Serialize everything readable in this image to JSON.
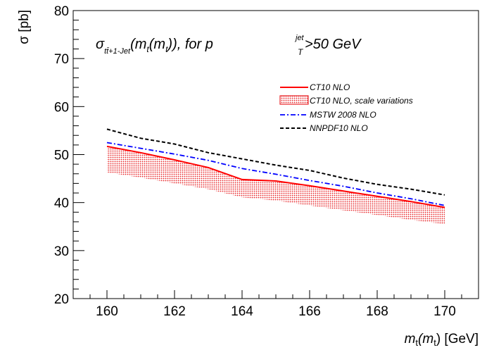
{
  "chart_data": {
    "type": "line",
    "title": "",
    "annotation": {
      "sigma": "σ",
      "subscript": "tt̄+1-Jet",
      "arg_open": "(m",
      "arg_sub1": "t",
      "arg_mid": "(m",
      "arg_sub2": "t",
      "arg_close": ")), for p",
      "pt_sup": "jet",
      "pt_sub": "T",
      "cut": ">50 GeV"
    },
    "xlabel": {
      "m": "m",
      "sub1": "t",
      "open": "(m",
      "sub2": "t",
      "close": ") [GeV]"
    },
    "ylabel": "σ  [pb]",
    "xlim": [
      159.0,
      171.0
    ],
    "ylim": [
      20,
      80
    ],
    "xticks": [
      160,
      162,
      164,
      166,
      168,
      170
    ],
    "yticks": [
      20,
      30,
      40,
      50,
      60,
      70,
      80
    ],
    "grid": false,
    "legend_position": "upper-right",
    "x": [
      160,
      161,
      162,
      163,
      164,
      165,
      166,
      167,
      168,
      169,
      170
    ],
    "band": {
      "name": "CT10 NLO, scale variations",
      "color": "#e8262a",
      "upper": [
        51.7,
        50.4,
        48.9,
        47.3,
        44.8,
        44.5,
        43.5,
        42.4,
        41.3,
        40.2,
        39.0
      ],
      "lower": [
        46.3,
        45.2,
        44.0,
        42.8,
        41.1,
        40.4,
        39.4,
        38.4,
        37.4,
        36.4,
        35.5
      ]
    },
    "series": [
      {
        "name": "CT10 NLO",
        "color": "#ff0000",
        "style": "solid",
        "values": [
          51.7,
          50.4,
          48.9,
          47.3,
          44.8,
          44.5,
          43.5,
          42.4,
          41.3,
          40.2,
          39.0
        ]
      },
      {
        "name": "MSTW 2008 NLO",
        "color": "#0000ff",
        "style": "dashdot",
        "values": [
          52.5,
          51.3,
          50.1,
          48.8,
          47.1,
          45.9,
          44.6,
          43.4,
          42.0,
          40.8,
          39.4
        ]
      },
      {
        "name": "NNPDF10 NLO",
        "color": "#000000",
        "style": "dashed",
        "values": [
          55.3,
          53.4,
          52.2,
          50.4,
          49.1,
          47.8,
          46.7,
          45.1,
          43.8,
          42.8,
          41.6
        ]
      }
    ],
    "legend": [
      {
        "label": "CT10 NLO",
        "kind": "line",
        "series": 0
      },
      {
        "label": "CT10 NLO, scale variations",
        "kind": "band"
      },
      {
        "label": "MSTW 2008 NLO",
        "kind": "line",
        "series": 1
      },
      {
        "label": "NNPDF10 NLO",
        "kind": "line",
        "series": 2
      }
    ]
  }
}
